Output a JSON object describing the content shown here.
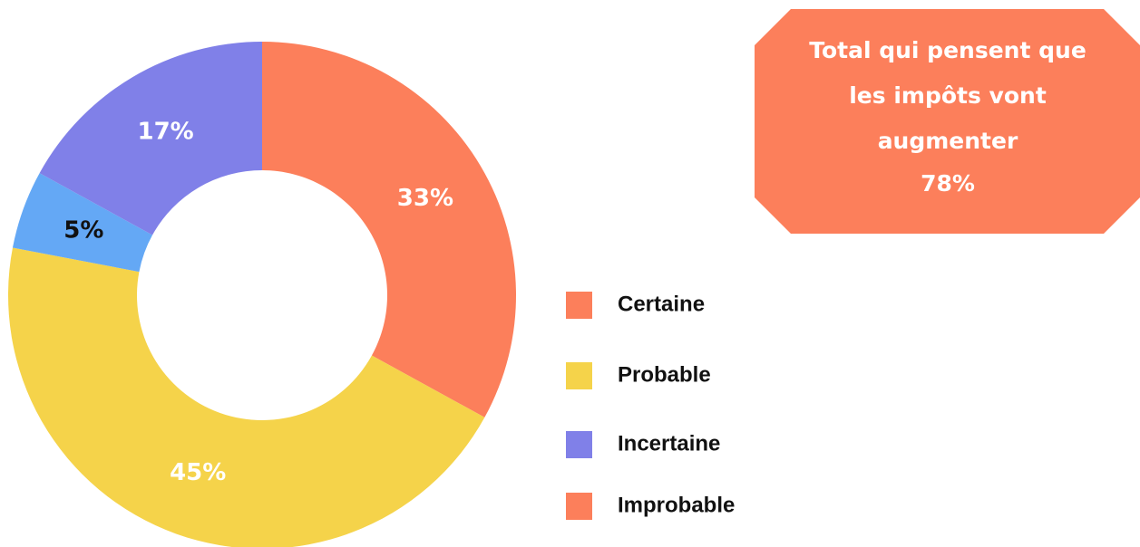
{
  "chart_data": {
    "type": "donut",
    "values": [
      33,
      45,
      5,
      17
    ],
    "value_labels": [
      "33%",
      "45%",
      "5%",
      "17%"
    ],
    "colors": [
      "#fc7f5b",
      "#f5d34a",
      "#64a8f5",
      "#8080e8"
    ],
    "label_colors": [
      "#ffffff",
      "#ffffff",
      "#111111",
      "#ffffff"
    ],
    "legend": [
      {
        "label": "Certaine",
        "color": "#fc7f5b"
      },
      {
        "label": "Probable",
        "color": "#f5d34a"
      },
      {
        "label": "Incertaine",
        "color": "#8080e8"
      },
      {
        "label": "Improbable",
        "color": "#fc7f5b"
      }
    ]
  },
  "callout": {
    "lines": [
      "Total qui pensent que",
      "les impôts vont",
      "augmenter"
    ],
    "value": "78%"
  }
}
